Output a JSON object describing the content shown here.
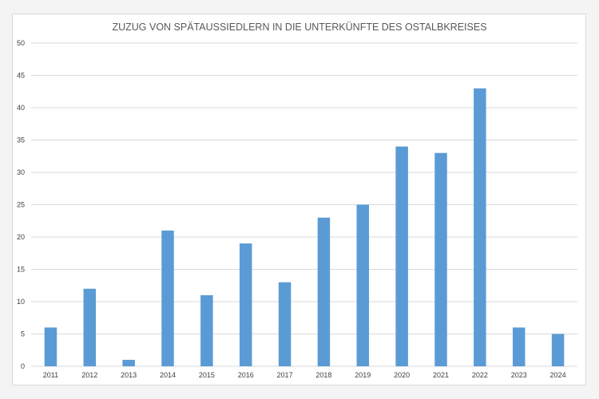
{
  "chart_data": {
    "type": "bar",
    "title": "ZUZUG VON SPÄTAUSSIEDLERN IN DIE UNTERKÜNFTE DES OSTALBKREISES",
    "categories": [
      "2011",
      "2012",
      "2013",
      "2014",
      "2015",
      "2016",
      "2017",
      "2018",
      "2019",
      "2020",
      "2021",
      "2022",
      "2023",
      "2024"
    ],
    "values": [
      6,
      12,
      1,
      21,
      11,
      19,
      13,
      23,
      25,
      34,
      33,
      43,
      6,
      5
    ],
    "ylim": [
      0,
      50
    ],
    "yticks": [
      0,
      5,
      10,
      15,
      20,
      25,
      30,
      35,
      40,
      45,
      50
    ],
    "grid": true,
    "legend": "none",
    "colors": {
      "bar": "#5b9bd5",
      "grid": "#d9d9d9",
      "text": "#595959"
    }
  }
}
